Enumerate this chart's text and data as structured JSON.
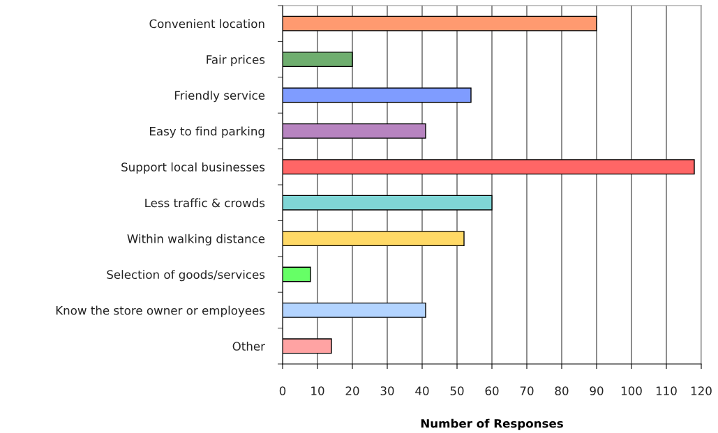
{
  "chart_data": {
    "type": "bar",
    "orientation": "horizontal",
    "xlabel": "Number of Responses",
    "categories": [
      "Convenient location",
      "Fair prices",
      "Friendly service",
      "Easy to find parking",
      "Support local businesses",
      "Less traffic & crowds",
      "Within walking distance",
      "Selection of goods/services",
      "Know the store owner or employees",
      "Other"
    ],
    "values": [
      90,
      20,
      54,
      41,
      118,
      60,
      52,
      8,
      41,
      14
    ],
    "colors": [
      "#ff9a70",
      "#6fae6f",
      "#7f9cff",
      "#b784c0",
      "#ff6666",
      "#7fd6d6",
      "#ffd966",
      "#66ff66",
      "#b3d4ff",
      "#ffa3a3"
    ],
    "xlim": [
      0,
      120
    ],
    "xticks": [
      0,
      10,
      20,
      30,
      40,
      50,
      60,
      70,
      80,
      90,
      100,
      110,
      120
    ],
    "grid": "x"
  }
}
